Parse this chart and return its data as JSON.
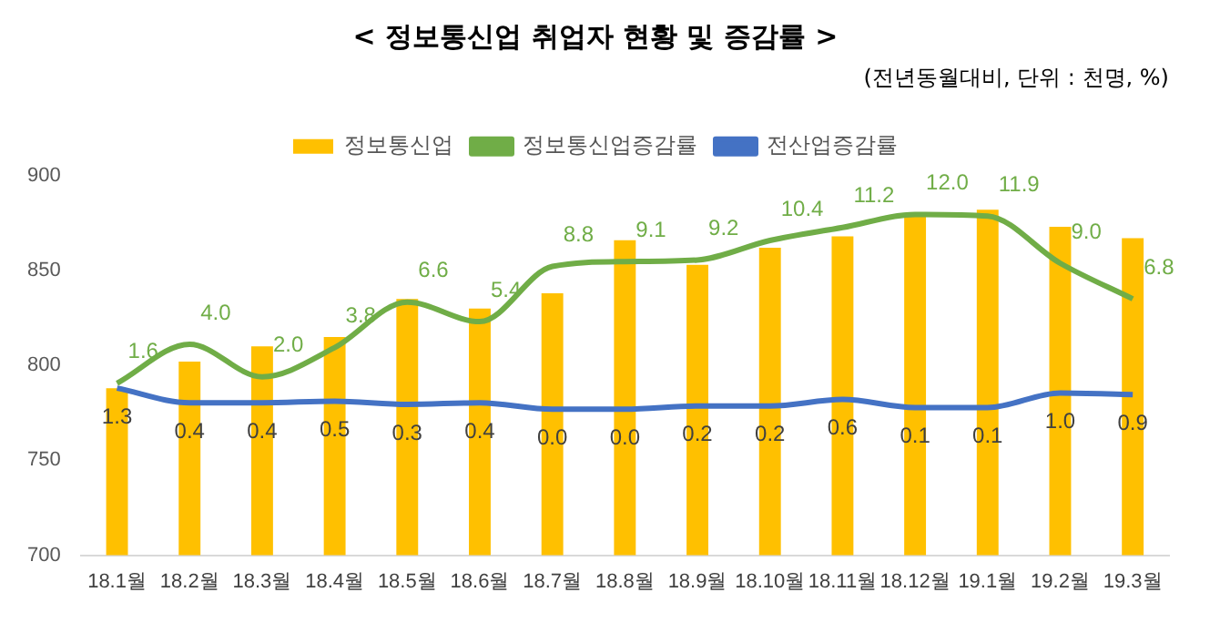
{
  "chart_data": {
    "type": "bar",
    "title": "< 정보통신업 취업자 현황 및 증감률 >",
    "subtitle": "(전년동월대비, 단위 : 천명, %)",
    "categories": [
      "18.1월",
      "18.2월",
      "18.3월",
      "18.4월",
      "18.5월",
      "18.6월",
      "18.7월",
      "18.8월",
      "18.9월",
      "18.10월",
      "18.11월",
      "18.12월",
      "19.1월",
      "19.2월",
      "19.3월"
    ],
    "series": [
      {
        "name": "정보통신업",
        "color": "#ffc000",
        "values": [
          788,
          802,
          810,
          815,
          835,
          830,
          838,
          866,
          853,
          862,
          868,
          880,
          882,
          873,
          867
        ]
      },
      {
        "name": "정보통신업증감률",
        "type": "line",
        "axis": "y2",
        "color": "#70ad47",
        "values": [
          1.6,
          4.0,
          2.0,
          3.8,
          6.6,
          5.4,
          8.8,
          9.1,
          9.2,
          10.4,
          11.2,
          12.0,
          11.9,
          9.0,
          6.8
        ],
        "value_labels": [
          "1.6",
          "4.0",
          "2.0",
          "3.8",
          "6.6",
          "5.4",
          "8.8",
          "9.1",
          "9.2",
          "10.4",
          "11.2",
          "12.0",
          "11.9",
          "9.0",
          "6.8"
        ]
      },
      {
        "name": "전산업증감률",
        "type": "line",
        "axis": "y2",
        "color": "#4472c4",
        "values": [
          1.3,
          0.4,
          0.4,
          0.5,
          0.3,
          0.4,
          0.0,
          0.0,
          0.2,
          0.2,
          0.6,
          0.1,
          0.1,
          1.0,
          0.9
        ],
        "value_labels": [
          "1.3",
          "0.4",
          "0.4",
          "0.5",
          "0.3",
          "0.4",
          "0.0",
          "0.0",
          "0.2",
          "0.2",
          "0.6",
          "0.1",
          "0.1",
          "1.0",
          "0.9"
        ]
      }
    ],
    "ylim": [
      700,
      900
    ],
    "yticks": [
      700,
      750,
      800,
      850,
      900
    ],
    "tick_labels": "xy",
    "grid": false,
    "legend": "top",
    "marker": "none"
  }
}
